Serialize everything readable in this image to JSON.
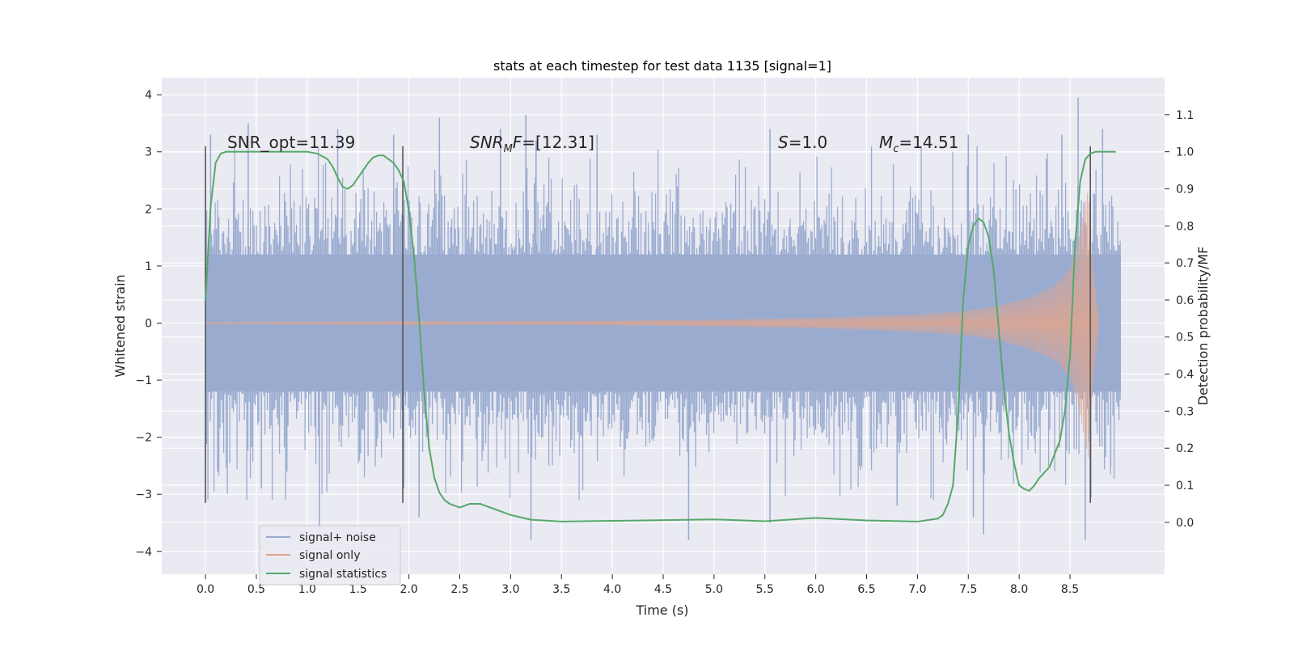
{
  "chart_data": {
    "type": "line",
    "title": "stats at each timestep for test data 1135 [signal=1]",
    "xlabel": "Time (s)",
    "ylabel": "Whitened strain",
    "y2label": "Detection probability/MF",
    "xlim": [
      -0.43,
      9.43
    ],
    "ylim": [
      -4.4,
      4.3
    ],
    "y2lim": [
      -0.14,
      1.2
    ],
    "x_ticks": [
      0.0,
      0.5,
      1.0,
      1.5,
      2.0,
      2.5,
      3.0,
      3.5,
      4.0,
      4.5,
      5.0,
      5.5,
      6.0,
      6.5,
      7.0,
      7.5,
      8.0,
      8.5
    ],
    "x_tick_labels": [
      "0.0",
      "0.5",
      "1.0",
      "1.5",
      "2.0",
      "2.5",
      "3.0",
      "3.5",
      "4.0",
      "4.5",
      "5.0",
      "5.5",
      "6.0",
      "6.5",
      "7.0",
      "7.5",
      "8.0",
      "8.5"
    ],
    "y_ticks": [
      4,
      3,
      2,
      1,
      0,
      -1,
      -2,
      -3,
      -4
    ],
    "y_tick_labels": [
      "4",
      "3",
      "2",
      "1",
      "0",
      "−1",
      "−2",
      "−3",
      "−4"
    ],
    "y2_ticks": [
      1.1,
      1.0,
      0.9,
      0.8,
      0.7,
      0.6,
      0.5,
      0.4,
      0.3,
      0.2,
      0.1,
      0.0
    ],
    "y2_tick_labels": [
      "1.1",
      "1.0",
      "0.9",
      "0.8",
      "0.7",
      "0.6",
      "0.5",
      "0.4",
      "0.3",
      "0.2",
      "0.1",
      "0.0"
    ],
    "grid": true,
    "legend_position": "lower-left",
    "series": [
      {
        "name": "signal+ noise",
        "axis": "left",
        "color": "#9aabd0",
        "x_range": [
          0.0,
          9.0
        ],
        "typical_envelope": [
          -2.0,
          2.0
        ],
        "spikes": [
          [
            0.05,
            3.3
          ],
          [
            0.12,
            -2.6
          ],
          [
            0.42,
            3.5
          ],
          [
            0.55,
            -2.9
          ],
          [
            0.8,
            -2.6
          ],
          [
            1.12,
            -3.6
          ],
          [
            1.3,
            3.4
          ],
          [
            1.85,
            3.3
          ],
          [
            1.95,
            -2.9
          ],
          [
            2.1,
            -3.4
          ],
          [
            2.3,
            3.6
          ],
          [
            2.9,
            3.4
          ],
          [
            3.15,
            3.65
          ],
          [
            3.2,
            -3.8
          ],
          [
            3.25,
            3.2
          ],
          [
            3.85,
            3.3
          ],
          [
            4.75,
            -3.8
          ],
          [
            5.55,
            3.4
          ],
          [
            5.55,
            -3.5
          ],
          [
            6.8,
            -3.2
          ],
          [
            7.5,
            3.3
          ],
          [
            7.55,
            -3.4
          ],
          [
            7.65,
            -3.7
          ],
          [
            8.42,
            3.3
          ],
          [
            8.58,
            3.95
          ],
          [
            8.65,
            -3.8
          ],
          [
            8.82,
            3.4
          ],
          [
            8.9,
            -2.5
          ]
        ]
      },
      {
        "name": "signal only",
        "axis": "left",
        "color": "#e0a58c",
        "x_range": [
          0.0,
          8.78
        ],
        "envelope_points": [
          [
            0.0,
            0.01
          ],
          [
            4.0,
            0.04
          ],
          [
            5.0,
            0.06
          ],
          [
            6.0,
            0.09
          ],
          [
            6.5,
            0.12
          ],
          [
            7.0,
            0.15
          ],
          [
            7.5,
            0.22
          ],
          [
            7.8,
            0.3
          ],
          [
            8.1,
            0.45
          ],
          [
            8.35,
            0.65
          ],
          [
            8.5,
            0.95
          ],
          [
            8.58,
            1.4
          ],
          [
            8.64,
            2.0
          ],
          [
            8.68,
            2.35
          ],
          [
            8.72,
            1.2
          ],
          [
            8.78,
            0.1
          ]
        ]
      },
      {
        "name": "signal statistics",
        "axis": "right",
        "color": "#55a868",
        "x": [
          0.0,
          0.05,
          0.1,
          0.15,
          0.2,
          0.3,
          0.5,
          0.8,
          1.0,
          1.1,
          1.2,
          1.25,
          1.3,
          1.35,
          1.4,
          1.45,
          1.5,
          1.55,
          1.6,
          1.65,
          1.7,
          1.75,
          1.8,
          1.85,
          1.9,
          1.95,
          2.0,
          2.05,
          2.1,
          2.15,
          2.2,
          2.25,
          2.3,
          2.35,
          2.4,
          2.5,
          2.6,
          2.7,
          2.8,
          3.0,
          3.2,
          3.5,
          4.0,
          4.5,
          5.0,
          5.5,
          6.0,
          6.5,
          7.0,
          7.2,
          7.25,
          7.3,
          7.35,
          7.4,
          7.45,
          7.5,
          7.55,
          7.6,
          7.65,
          7.7,
          7.75,
          7.8,
          7.85,
          7.9,
          7.95,
          8.0,
          8.05,
          8.1,
          8.15,
          8.2,
          8.3,
          8.4,
          8.45,
          8.5,
          8.55,
          8.6,
          8.65,
          8.7,
          8.75,
          8.8,
          8.85,
          8.9,
          8.95
        ],
        "y": [
          0.6,
          0.85,
          0.97,
          0.995,
          1.0,
          1.0,
          1.0,
          1.0,
          1.0,
          0.995,
          0.98,
          0.96,
          0.93,
          0.905,
          0.9,
          0.91,
          0.93,
          0.95,
          0.97,
          0.985,
          0.99,
          0.99,
          0.98,
          0.97,
          0.95,
          0.92,
          0.84,
          0.72,
          0.55,
          0.35,
          0.2,
          0.12,
          0.08,
          0.06,
          0.05,
          0.04,
          0.05,
          0.05,
          0.04,
          0.02,
          0.007,
          0.002,
          0.004,
          0.006,
          0.008,
          0.003,
          0.012,
          0.005,
          0.002,
          0.01,
          0.02,
          0.05,
          0.1,
          0.3,
          0.6,
          0.75,
          0.8,
          0.82,
          0.81,
          0.77,
          0.68,
          0.52,
          0.36,
          0.24,
          0.16,
          0.1,
          0.09,
          0.085,
          0.1,
          0.12,
          0.15,
          0.22,
          0.3,
          0.45,
          0.75,
          0.92,
          0.98,
          0.995,
          1.0,
          1.0,
          1.0,
          1.0,
          1.0
        ]
      }
    ],
    "vlines": [
      0.0,
      1.94,
      8.7
    ],
    "annotations": [
      {
        "x": 0.2,
        "label": "SNR_opt=11.39"
      },
      {
        "x": 2.6,
        "label": "SNR_MF=[12.31]"
      },
      {
        "x": 5.6,
        "label": "S=1.0"
      },
      {
        "x": 6.6,
        "label": "M_c=14.51"
      }
    ]
  },
  "text": {
    "title": "stats at each timestep for test data 1135 [signal=1]",
    "xlabel": "Time (s)",
    "ylabel": "Whitened strain",
    "y2label": "Detection probability/MF",
    "ann_snr_opt": "SNR_opt=11.39",
    "ann_snr_mf_base": "SNR",
    "ann_snr_mf_sub": "M",
    "ann_snr_mf_base2": "F",
    "ann_snr_mf_rest": "=[12.31]",
    "ann_s_base": "S",
    "ann_s_rest": "=1.0",
    "ann_mc_base": "M",
    "ann_mc_sub": "c",
    "ann_mc_rest": "=14.51",
    "legend_noise": "signal+ noise",
    "legend_signal": "signal only",
    "legend_stats": "signal statistics"
  },
  "colors": {
    "plot_bg": "#eaeaf2",
    "grid": "#ffffff",
    "noise": "#9aabd0",
    "signal": "#e0a58c",
    "stats": "#55a868",
    "vline": "#555555"
  }
}
